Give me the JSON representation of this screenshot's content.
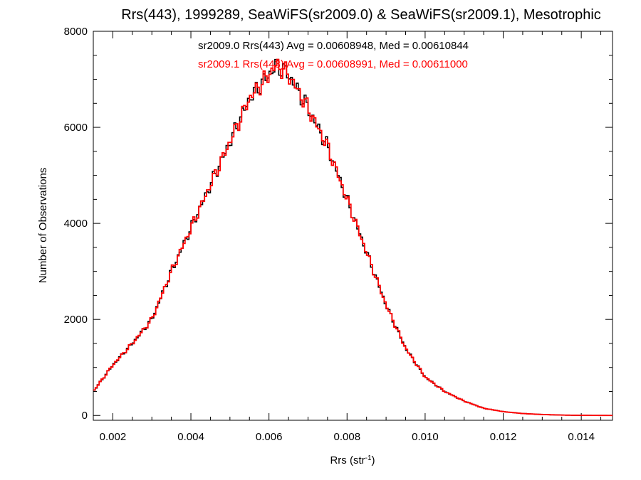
{
  "chart_data": {
    "type": "line",
    "title": "Rrs(443), 1999289, SeaWiFS(sr2009.0) & SeaWiFS(sr2009.1), Mesotrophic",
    "xlabel_main": "Rrs (str",
    "xlabel_sup": "-1",
    "xlabel_close": ")",
    "ylabel": "Number of Observations",
    "xlim": [
      0.0015,
      0.0148
    ],
    "ylim": [
      -100,
      8000
    ],
    "x_ticks": [
      "0.002",
      "0.004",
      "0.006",
      "0.008",
      "0.010",
      "0.012",
      "0.014"
    ],
    "x_tick_values": [
      0.002,
      0.004,
      0.006,
      0.008,
      0.01,
      0.012,
      0.014
    ],
    "y_ticks": [
      "0",
      "2000",
      "4000",
      "6000",
      "8000"
    ],
    "y_tick_values": [
      0,
      2000,
      4000,
      6000,
      8000
    ],
    "grid": false,
    "series": [
      {
        "name": "sr2009.0 Rrs(443) Avg = 0.00608948, Med = 0.00610844",
        "color": "#000000",
        "x": [
          0.0015,
          0.002,
          0.0025,
          0.003,
          0.0035,
          0.004,
          0.0045,
          0.005,
          0.0055,
          0.006,
          0.0062,
          0.0065,
          0.007,
          0.0075,
          0.008,
          0.0085,
          0.009,
          0.0095,
          0.01,
          0.0105,
          0.011,
          0.0115,
          0.012,
          0.0125,
          0.013,
          0.0135,
          0.014,
          0.0148
        ],
        "y": [
          500,
          1050,
          1500,
          2000,
          3000,
          3900,
          4800,
          5700,
          6600,
          7100,
          7300,
          7100,
          6400,
          5600,
          4500,
          3400,
          2300,
          1400,
          800,
          500,
          300,
          150,
          80,
          40,
          20,
          8,
          3,
          0
        ]
      },
      {
        "name": "sr2009.1 Rrs(443) Avg = 0.00608991, Med = 0.00611000",
        "color": "#ff0000",
        "x": [
          0.0015,
          0.002,
          0.0025,
          0.003,
          0.0035,
          0.004,
          0.0045,
          0.005,
          0.0055,
          0.006,
          0.0062,
          0.0065,
          0.007,
          0.0075,
          0.008,
          0.0085,
          0.009,
          0.0095,
          0.01,
          0.0105,
          0.011,
          0.0115,
          0.012,
          0.0125,
          0.013,
          0.0135,
          0.014,
          0.0148
        ],
        "y": [
          500,
          1050,
          1500,
          2000,
          3000,
          3900,
          4800,
          5700,
          6600,
          7100,
          7300,
          7100,
          6400,
          5600,
          4500,
          3400,
          2300,
          1400,
          800,
          500,
          300,
          150,
          80,
          40,
          20,
          8,
          3,
          0
        ]
      }
    ]
  }
}
